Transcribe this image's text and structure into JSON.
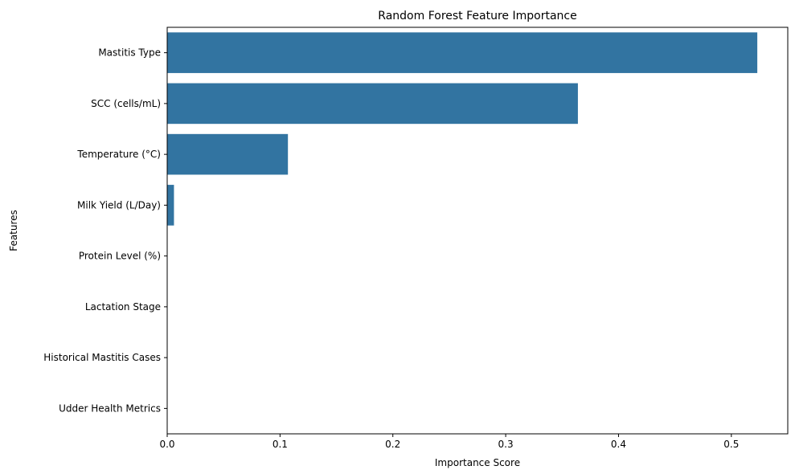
{
  "chart_data": {
    "type": "bar",
    "orientation": "horizontal",
    "title": "Random Forest Feature Importance",
    "xlabel": "Importance Score",
    "ylabel": "Features",
    "categories": [
      "Mastitis Type",
      "SCC (cells/mL)",
      "Temperature (°C)",
      "Milk Yield (L/Day)",
      "Protein Level (%)",
      "Lactation Stage",
      "Historical Mastitis Cases",
      "Udder Health Metrics"
    ],
    "values": [
      0.523,
      0.364,
      0.107,
      0.006,
      0.0,
      0.0,
      0.0,
      0.0
    ],
    "xlim": [
      0,
      0.55
    ],
    "xticks": [
      0.0,
      0.1,
      0.2,
      0.3,
      0.4,
      0.5
    ],
    "xtick_labels": [
      "0.0",
      "0.1",
      "0.2",
      "0.3",
      "0.4",
      "0.5"
    ],
    "grid": false,
    "legend": "none",
    "bar_color": "#3274a1"
  }
}
